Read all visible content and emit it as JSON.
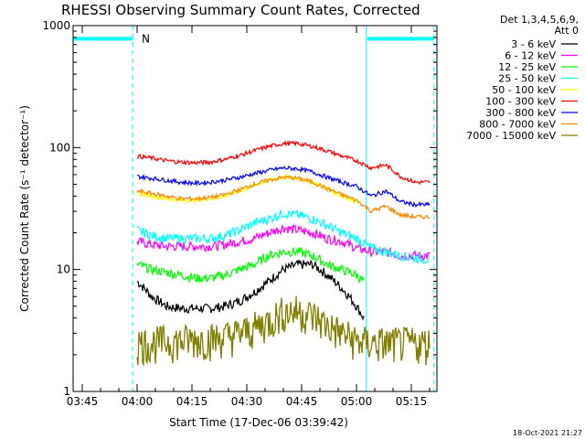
{
  "chart_data": {
    "type": "line",
    "title": "RHESSI Observing Summary Count Rates, Corrected",
    "xlabel": "Start Time (17-Dec-06 03:39:42)",
    "ylabel": "Corrected Count Rate (s⁻¹ detector⁻¹)",
    "y_scale": "log",
    "ylim": [
      1,
      1000
    ],
    "xlim_minutes": [
      222.5,
      322
    ],
    "x_ticks": [
      {
        "label": "03:45",
        "minute": 225
      },
      {
        "label": "04:00",
        "minute": 240
      },
      {
        "label": "04:15",
        "minute": 255
      },
      {
        "label": "04:30",
        "minute": 270
      },
      {
        "label": "04:45",
        "minute": 285
      },
      {
        "label": "05:00",
        "minute": 300
      },
      {
        "label": "05:15",
        "minute": 315
      }
    ],
    "y_ticks": [
      {
        "label": "1",
        "value": 1
      },
      {
        "label": "10",
        "value": 10
      },
      {
        "label": "100",
        "value": 100
      },
      {
        "label": "1000",
        "value": 1000
      }
    ],
    "legend_header": [
      "Det 1,3,4,5,6,9,",
      "Att 0"
    ],
    "legend_position": "right",
    "annotations": [
      {
        "text": "N",
        "minute": 240.5,
        "value": 780
      }
    ],
    "night_bars": [
      {
        "start": 222.5,
        "end": 238.8,
        "value": 780
      },
      {
        "start": 303.0,
        "end": 321.2,
        "value": 780
      }
    ],
    "dashed_markers": [
      238.8,
      321.2
    ],
    "solid_markers": [
      302.7
    ],
    "series": [
      {
        "name": "3 - 6 keV",
        "color": "#000000",
        "x": [
          240,
          244,
          248,
          252,
          256,
          260,
          264,
          268,
          272,
          276,
          280,
          284,
          288,
          292,
          296,
          300,
          302
        ],
        "y": [
          8,
          6,
          5,
          4.8,
          4.8,
          4.8,
          5,
          5.5,
          6.5,
          8,
          10,
          11,
          11,
          9,
          7,
          5,
          4
        ]
      },
      {
        "name": "6 - 12 keV",
        "color": "#ff00ff",
        "x": [
          240,
          244,
          248,
          252,
          256,
          260,
          264,
          268,
          272,
          276,
          280,
          284,
          288,
          292,
          296,
          300,
          304,
          308,
          312,
          316,
          320
        ],
        "y": [
          17,
          16,
          15.5,
          15.5,
          15.5,
          15.5,
          16,
          17,
          18,
          20,
          22,
          21,
          20,
          18,
          17,
          15,
          14,
          14,
          13,
          13,
          13
        ]
      },
      {
        "name": "12 - 25 keV",
        "color": "#00ff00",
        "x": [
          240,
          244,
          248,
          252,
          256,
          260,
          264,
          268,
          272,
          276,
          280,
          284,
          288,
          292,
          296,
          300,
          302
        ],
        "y": [
          11,
          10,
          9.5,
          9,
          8.5,
          8.5,
          9,
          10,
          11,
          13,
          14,
          14,
          13,
          11,
          10,
          9,
          8
        ]
      },
      {
        "name": "25 - 50 keV",
        "color": "#00ffff",
        "x": [
          240,
          244,
          248,
          252,
          256,
          260,
          264,
          268,
          272,
          276,
          280,
          284,
          288,
          292,
          296,
          300,
          304,
          308,
          312,
          316,
          320
        ],
        "y": [
          21,
          19,
          18,
          18,
          18,
          18,
          19,
          21,
          24,
          26,
          29,
          28,
          26,
          23,
          20,
          18,
          15,
          14,
          13,
          12.5,
          12
        ]
      },
      {
        "name": "50 - 100 keV",
        "color": "#ffff00",
        "x": [
          240,
          244,
          248,
          252,
          256,
          260,
          264,
          268,
          272,
          276,
          280,
          284,
          288,
          292,
          296,
          300
        ],
        "y": [
          42,
          40,
          38,
          37,
          37,
          38,
          40,
          44,
          49,
          54,
          57,
          56,
          52,
          46,
          40,
          36
        ]
      },
      {
        "name": "100 - 300 keV",
        "color": "#ff0000",
        "x": [
          240,
          244,
          248,
          252,
          256,
          260,
          264,
          268,
          272,
          276,
          280,
          284,
          288,
          292,
          296,
          300,
          304,
          308,
          312,
          316,
          320
        ],
        "y": [
          85,
          82,
          78,
          76,
          75,
          76,
          80,
          86,
          94,
          102,
          108,
          108,
          102,
          94,
          85,
          78,
          68,
          72,
          58,
          52,
          52
        ]
      },
      {
        "name": "300 - 800 keV",
        "color": "#0000ff",
        "x": [
          240,
          244,
          248,
          252,
          256,
          260,
          264,
          268,
          272,
          276,
          280,
          284,
          288,
          292,
          296,
          300,
          304,
          308,
          312,
          316,
          320
        ],
        "y": [
          58,
          56,
          54,
          52,
          51,
          52,
          54,
          57,
          61,
          65,
          68,
          67,
          63,
          57,
          52,
          48,
          40,
          44,
          36,
          34,
          34
        ]
      },
      {
        "name": "800 - 7000 keV",
        "color": "#ff8800",
        "x": [
          240,
          244,
          248,
          252,
          256,
          260,
          264,
          268,
          272,
          276,
          280,
          284,
          288,
          292,
          296,
          300,
          304,
          308,
          312,
          316,
          320
        ],
        "y": [
          44,
          42,
          40,
          38,
          38,
          39,
          41,
          45,
          50,
          54,
          57,
          56,
          52,
          46,
          41,
          37,
          30,
          33,
          28,
          27,
          27
        ]
      },
      {
        "name": "7000 - 15000 keV",
        "color": "#808000",
        "x": [
          240,
          244,
          248,
          252,
          256,
          260,
          264,
          268,
          272,
          276,
          280,
          284,
          288,
          292,
          296,
          300,
          304,
          308,
          312,
          316,
          320
        ],
        "y": [
          2.5,
          2.5,
          2.6,
          2.6,
          2.7,
          2.7,
          2.8,
          3.0,
          3.3,
          3.8,
          4.5,
          4.6,
          4.2,
          3.5,
          3.0,
          2.6,
          2.5,
          2.5,
          2.5,
          2.5,
          2.5
        ]
      }
    ]
  },
  "timestamp": "18-Oct-2021 21:27"
}
